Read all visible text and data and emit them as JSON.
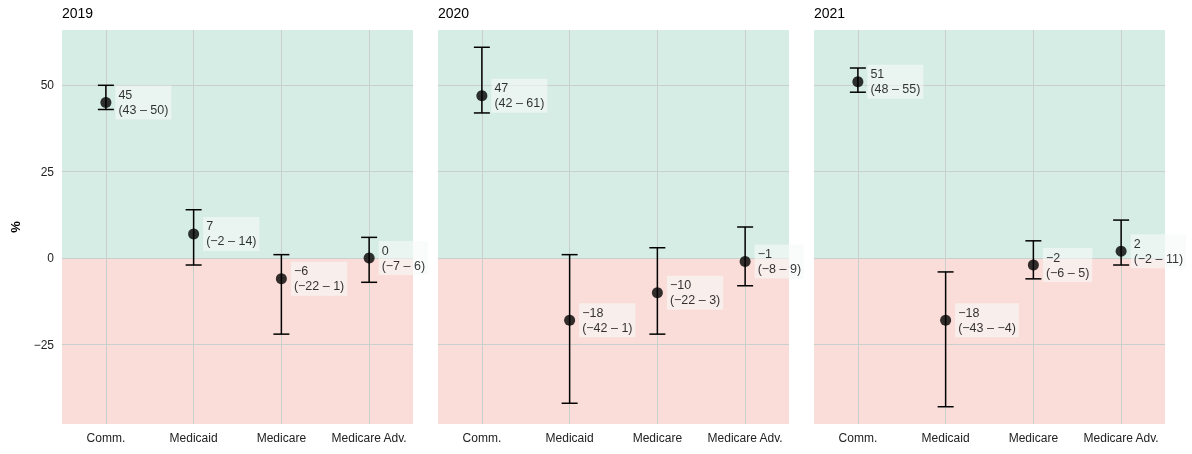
{
  "chart_data": [
    {
      "type": "scatter",
      "title": "2019",
      "ylabel": "%",
      "categories": [
        "Comm.",
        "Medicaid",
        "Medicare",
        "Medicare Adv."
      ],
      "color": "#000000",
      "marker": "circle",
      "grid": true,
      "values": [
        45,
        7,
        -6,
        0
      ],
      "errors": [
        [
          43,
          50
        ],
        [
          -2,
          14
        ],
        [
          -22,
          1
        ],
        [
          -7,
          6
        ]
      ],
      "value_labels": [
        "45\n(43 – 50)",
        "7\n(−2 – 14)",
        "−6\n(−22 – 1)",
        "0\n(−7 – 6)"
      ],
      "ylim": [
        -48,
        66
      ],
      "yticks": [
        {
          "value": -25,
          "label": "−25"
        },
        0,
        25,
        50
      ],
      "bands": [
        {
          "axis": "y",
          "from": 0,
          "to": 66,
          "color": "#d6ede6"
        },
        {
          "axis": "y",
          "from": -48,
          "to": 0,
          "color": "#fadcd8"
        }
      ]
    },
    {
      "type": "scatter",
      "title": "2020",
      "categories": [
        "Comm.",
        "Medicaid",
        "Medicare",
        "Medicare Adv."
      ],
      "color": "#000000",
      "marker": "circle",
      "grid": true,
      "tick_labels": "x",
      "values": [
        47,
        -18,
        -10,
        -1
      ],
      "errors": [
        [
          42,
          61
        ],
        [
          -42,
          1
        ],
        [
          -22,
          3
        ],
        [
          -8,
          9
        ]
      ],
      "value_labels": [
        "47\n(42 – 61)",
        "−18\n(−42 – 1)",
        "−10\n(−22 – 3)",
        "−1\n(−8 – 9)"
      ],
      "ylim": [
        -48,
        66
      ],
      "yticks": [
        -25,
        0,
        25,
        50
      ],
      "bands": [
        {
          "axis": "y",
          "from": 0,
          "to": 66,
          "color": "#d6ede6"
        },
        {
          "axis": "y",
          "from": -48,
          "to": 0,
          "color": "#fadcd8"
        }
      ]
    },
    {
      "type": "scatter",
      "title": "2021",
      "categories": [
        "Comm.",
        "Medicaid",
        "Medicare",
        "Medicare Adv."
      ],
      "color": "#000000",
      "marker": "circle",
      "grid": true,
      "tick_labels": "x",
      "values": [
        51,
        -18,
        -2,
        2
      ],
      "errors": [
        [
          48,
          55
        ],
        [
          -43,
          -4
        ],
        [
          -6,
          5
        ],
        [
          -2,
          11
        ]
      ],
      "value_labels": [
        "51\n(48 – 55)",
        "−18\n(−43 – −4)",
        "−2\n(−6 – 5)",
        "2\n(−2 – 11)"
      ],
      "ylim": [
        -48,
        66
      ],
      "yticks": [
        -25,
        0,
        25,
        50
      ],
      "bands": [
        {
          "axis": "y",
          "from": 0,
          "to": 66,
          "color": "#d6ede6"
        },
        {
          "axis": "y",
          "from": -48,
          "to": 0,
          "color": "#fadcd8"
        }
      ]
    }
  ]
}
